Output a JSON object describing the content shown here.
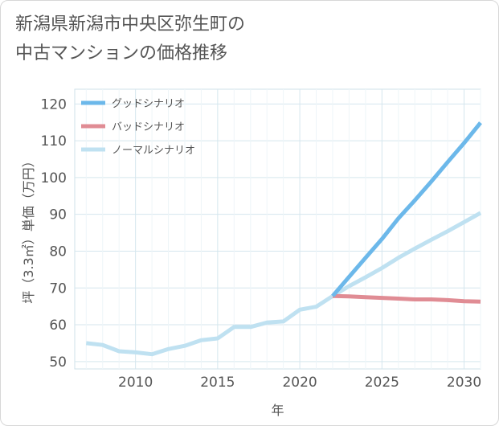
{
  "title": {
    "line1": "新潟県新潟市中央区弥生町の",
    "line2": "中古マンションの価格推移"
  },
  "chart_data": {
    "type": "line",
    "xlabel": "年",
    "ylabel": "坪（3.3㎡）単価（万円）",
    "xlim": [
      2006.3,
      2031
    ],
    "ylim": [
      48,
      124
    ],
    "xticks": [
      2010,
      2015,
      2020,
      2025,
      2030
    ],
    "yticks": [
      50,
      60,
      70,
      80,
      90,
      100,
      110,
      120
    ],
    "grid": true,
    "legend_position": "top-left",
    "series": [
      {
        "name": "グッドシナリオ",
        "color": "#6cb8ea",
        "x": [
          2022,
          2023,
          2024,
          2025,
          2026,
          2027,
          2028,
          2029,
          2030,
          2031
        ],
        "y": [
          67.8,
          73.0,
          78.2,
          83.3,
          88.9,
          93.8,
          98.9,
          104.2,
          109.4,
          114.9
        ]
      },
      {
        "name": "バッドシナリオ",
        "color": "#e08c94",
        "x": [
          2022,
          2023,
          2024,
          2025,
          2026,
          2027,
          2028,
          2029,
          2030,
          2031
        ],
        "y": [
          67.8,
          67.7,
          67.5,
          67.3,
          67.1,
          66.9,
          66.9,
          66.7,
          66.4,
          66.3
        ]
      },
      {
        "name": "ノーマルシナリオ",
        "color": "#bfe1f1",
        "x": [
          2007,
          2008,
          2009,
          2010,
          2011,
          2012,
          2013,
          2014,
          2015,
          2016,
          2017,
          2018,
          2019,
          2020,
          2021,
          2022,
          2023,
          2024,
          2025,
          2026,
          2027,
          2028,
          2029,
          2030,
          2031
        ],
        "y": [
          55.0,
          54.5,
          52.8,
          52.5,
          52.0,
          53.4,
          54.3,
          55.8,
          56.3,
          59.4,
          59.4,
          60.6,
          60.9,
          64.1,
          64.9,
          67.8,
          70.5,
          72.9,
          75.4,
          78.2,
          80.7,
          83.1,
          85.4,
          87.9,
          90.4
        ]
      }
    ]
  }
}
